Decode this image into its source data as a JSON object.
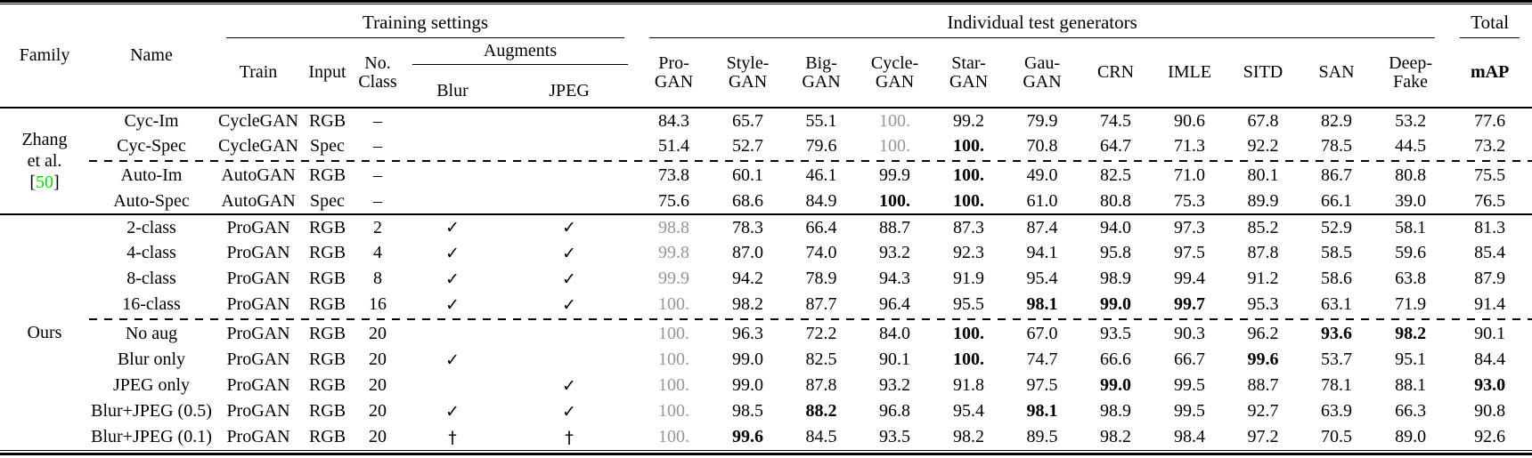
{
  "colors": {
    "muted_value": "#969696",
    "citation": "#00dd00"
  },
  "table": {
    "header": {
      "family": "Family",
      "name": "Name",
      "training_settings": "Training settings",
      "individual_test_generators": "Individual test generators",
      "total": "Total",
      "train": "Train",
      "input": "Input",
      "no_class_lines": [
        "No.",
        "Class"
      ],
      "augments": "Augments",
      "blur": "Blur",
      "jpeg": "JPEG",
      "map": "mAP"
    },
    "generator_columns": [
      [
        "Pro-",
        "GAN"
      ],
      [
        "Style-",
        "GAN"
      ],
      [
        "Big-",
        "GAN"
      ],
      [
        "Cycle-",
        "GAN"
      ],
      [
        "Star-",
        "GAN"
      ],
      [
        "Gau-",
        "GAN"
      ],
      [
        "CRN"
      ],
      [
        "IMLE"
      ],
      [
        "SITD"
      ],
      [
        "SAN"
      ],
      [
        "Deep-",
        "Fake"
      ]
    ],
    "groups": [
      {
        "family_lines": [
          {
            "text": "Zhang"
          },
          {
            "text": "et al."
          },
          {
            "bracket_open": "[",
            "citation": "50",
            "bracket_close": "]"
          }
        ],
        "dashed_separator_after_row": 1,
        "rows": [
          {
            "name": "Cyc-Im",
            "train": "CycleGAN",
            "input": "RGB",
            "no_class": "–",
            "blur": "",
            "jpeg": "",
            "values": [
              [
                "84.3"
              ],
              [
                "65.7"
              ],
              [
                "55.1"
              ],
              [
                "100.",
                "muted"
              ],
              [
                "99.2"
              ],
              [
                "79.9"
              ],
              [
                "74.5"
              ],
              [
                "90.6"
              ],
              [
                "67.8"
              ],
              [
                "82.9"
              ],
              [
                "53.2"
              ]
            ],
            "map": [
              "77.6"
            ]
          },
          {
            "name": "Cyc-Spec",
            "train": "CycleGAN",
            "input": "Spec",
            "no_class": "–",
            "blur": "",
            "jpeg": "",
            "values": [
              [
                "51.4"
              ],
              [
                "52.7"
              ],
              [
                "79.6"
              ],
              [
                "100.",
                "muted"
              ],
              [
                "100.",
                "bold"
              ],
              [
                "70.8"
              ],
              [
                "64.7"
              ],
              [
                "71.3"
              ],
              [
                "92.2"
              ],
              [
                "78.5"
              ],
              [
                "44.5"
              ]
            ],
            "map": [
              "73.2"
            ]
          },
          {
            "name": "Auto-Im",
            "train": "AutoGAN",
            "input": "RGB",
            "no_class": "–",
            "blur": "",
            "jpeg": "",
            "values": [
              [
                "73.8"
              ],
              [
                "60.1"
              ],
              [
                "46.1"
              ],
              [
                "99.9"
              ],
              [
                "100.",
                "bold"
              ],
              [
                "49.0"
              ],
              [
                "82.5"
              ],
              [
                "71.0"
              ],
              [
                "80.1"
              ],
              [
                "86.7"
              ],
              [
                "80.8"
              ]
            ],
            "map": [
              "75.5"
            ]
          },
          {
            "name": "Auto-Spec",
            "train": "AutoGAN",
            "input": "Spec",
            "no_class": "–",
            "blur": "",
            "jpeg": "",
            "values": [
              [
                "75.6"
              ],
              [
                "68.6"
              ],
              [
                "84.9"
              ],
              [
                "100.",
                "bold"
              ],
              [
                "100.",
                "bold"
              ],
              [
                "61.0"
              ],
              [
                "80.8"
              ],
              [
                "75.3"
              ],
              [
                "89.9"
              ],
              [
                "66.1"
              ],
              [
                "39.0"
              ]
            ],
            "map": [
              "76.5"
            ]
          }
        ]
      },
      {
        "family_lines": [
          {
            "text": "Ours"
          }
        ],
        "dashed_separator_after_row": 3,
        "rows": [
          {
            "name": "2-class",
            "train": "ProGAN",
            "input": "RGB",
            "no_class": "2",
            "blur": "✓",
            "jpeg": "✓",
            "values": [
              [
                "98.8",
                "muted"
              ],
              [
                "78.3"
              ],
              [
                "66.4"
              ],
              [
                "88.7"
              ],
              [
                "87.3"
              ],
              [
                "87.4"
              ],
              [
                "94.0"
              ],
              [
                "97.3"
              ],
              [
                "85.2"
              ],
              [
                "52.9"
              ],
              [
                "58.1"
              ]
            ],
            "map": [
              "81.3"
            ]
          },
          {
            "name": "4-class",
            "train": "ProGAN",
            "input": "RGB",
            "no_class": "4",
            "blur": "✓",
            "jpeg": "✓",
            "values": [
              [
                "99.8",
                "muted"
              ],
              [
                "87.0"
              ],
              [
                "74.0"
              ],
              [
                "93.2"
              ],
              [
                "92.3"
              ],
              [
                "94.1"
              ],
              [
                "95.8"
              ],
              [
                "97.5"
              ],
              [
                "87.8"
              ],
              [
                "58.5"
              ],
              [
                "59.6"
              ]
            ],
            "map": [
              "85.4"
            ]
          },
          {
            "name": "8-class",
            "train": "ProGAN",
            "input": "RGB",
            "no_class": "8",
            "blur": "✓",
            "jpeg": "✓",
            "values": [
              [
                "99.9",
                "muted"
              ],
              [
                "94.2"
              ],
              [
                "78.9"
              ],
              [
                "94.3"
              ],
              [
                "91.9"
              ],
              [
                "95.4"
              ],
              [
                "98.9"
              ],
              [
                "99.4"
              ],
              [
                "91.2"
              ],
              [
                "58.6"
              ],
              [
                "63.8"
              ]
            ],
            "map": [
              "87.9"
            ]
          },
          {
            "name": "16-class",
            "train": "ProGAN",
            "input": "RGB",
            "no_class": "16",
            "blur": "✓",
            "jpeg": "✓",
            "values": [
              [
                "100.",
                "muted"
              ],
              [
                "98.2"
              ],
              [
                "87.7"
              ],
              [
                "96.4"
              ],
              [
                "95.5"
              ],
              [
                "98.1",
                "bold"
              ],
              [
                "99.0",
                "bold"
              ],
              [
                "99.7",
                "bold"
              ],
              [
                "95.3"
              ],
              [
                "63.1"
              ],
              [
                "71.9"
              ]
            ],
            "map": [
              "91.4"
            ]
          },
          {
            "name": "No aug",
            "train": "ProGAN",
            "input": "RGB",
            "no_class": "20",
            "blur": "",
            "jpeg": "",
            "values": [
              [
                "100.",
                "muted"
              ],
              [
                "96.3"
              ],
              [
                "72.2"
              ],
              [
                "84.0"
              ],
              [
                "100.",
                "bold"
              ],
              [
                "67.0"
              ],
              [
                "93.5"
              ],
              [
                "90.3"
              ],
              [
                "96.2"
              ],
              [
                "93.6",
                "bold"
              ],
              [
                "98.2",
                "bold"
              ]
            ],
            "map": [
              "90.1"
            ]
          },
          {
            "name": "Blur only",
            "train": "ProGAN",
            "input": "RGB",
            "no_class": "20",
            "blur": "✓",
            "jpeg": "",
            "values": [
              [
                "100.",
                "muted"
              ],
              [
                "99.0"
              ],
              [
                "82.5"
              ],
              [
                "90.1"
              ],
              [
                "100.",
                "bold"
              ],
              [
                "74.7"
              ],
              [
                "66.6"
              ],
              [
                "66.7"
              ],
              [
                "99.6",
                "bold"
              ],
              [
                "53.7"
              ],
              [
                "95.1"
              ]
            ],
            "map": [
              "84.4"
            ]
          },
          {
            "name": "JPEG only",
            "train": "ProGAN",
            "input": "RGB",
            "no_class": "20",
            "blur": "",
            "jpeg": "✓",
            "values": [
              [
                "100.",
                "muted"
              ],
              [
                "99.0"
              ],
              [
                "87.8"
              ],
              [
                "93.2"
              ],
              [
                "91.8"
              ],
              [
                "97.5"
              ],
              [
                "99.0",
                "bold"
              ],
              [
                "99.5"
              ],
              [
                "88.7"
              ],
              [
                "78.1"
              ],
              [
                "88.1"
              ]
            ],
            "map": [
              "93.0",
              "bold"
            ]
          },
          {
            "name": "Blur+JPEG (0.5)",
            "train": "ProGAN",
            "input": "RGB",
            "no_class": "20",
            "blur": "✓",
            "jpeg": "✓",
            "values": [
              [
                "100.",
                "muted"
              ],
              [
                "98.5"
              ],
              [
                "88.2",
                "bold"
              ],
              [
                "96.8"
              ],
              [
                "95.4"
              ],
              [
                "98.1",
                "bold"
              ],
              [
                "98.9"
              ],
              [
                "99.5"
              ],
              [
                "92.7"
              ],
              [
                "63.9"
              ],
              [
                "66.3"
              ]
            ],
            "map": [
              "90.8"
            ]
          },
          {
            "name": "Blur+JPEG (0.1)",
            "train": "ProGAN",
            "input": "RGB",
            "no_class": "20",
            "blur": "†",
            "jpeg": "†",
            "values": [
              [
                "100.",
                "muted"
              ],
              [
                "99.6",
                "bold"
              ],
              [
                "84.5"
              ],
              [
                "93.5"
              ],
              [
                "98.2"
              ],
              [
                "89.5"
              ],
              [
                "98.2"
              ],
              [
                "98.4"
              ],
              [
                "97.2"
              ],
              [
                "70.5"
              ],
              [
                "89.0"
              ]
            ],
            "map": [
              "92.6"
            ]
          }
        ]
      }
    ]
  }
}
